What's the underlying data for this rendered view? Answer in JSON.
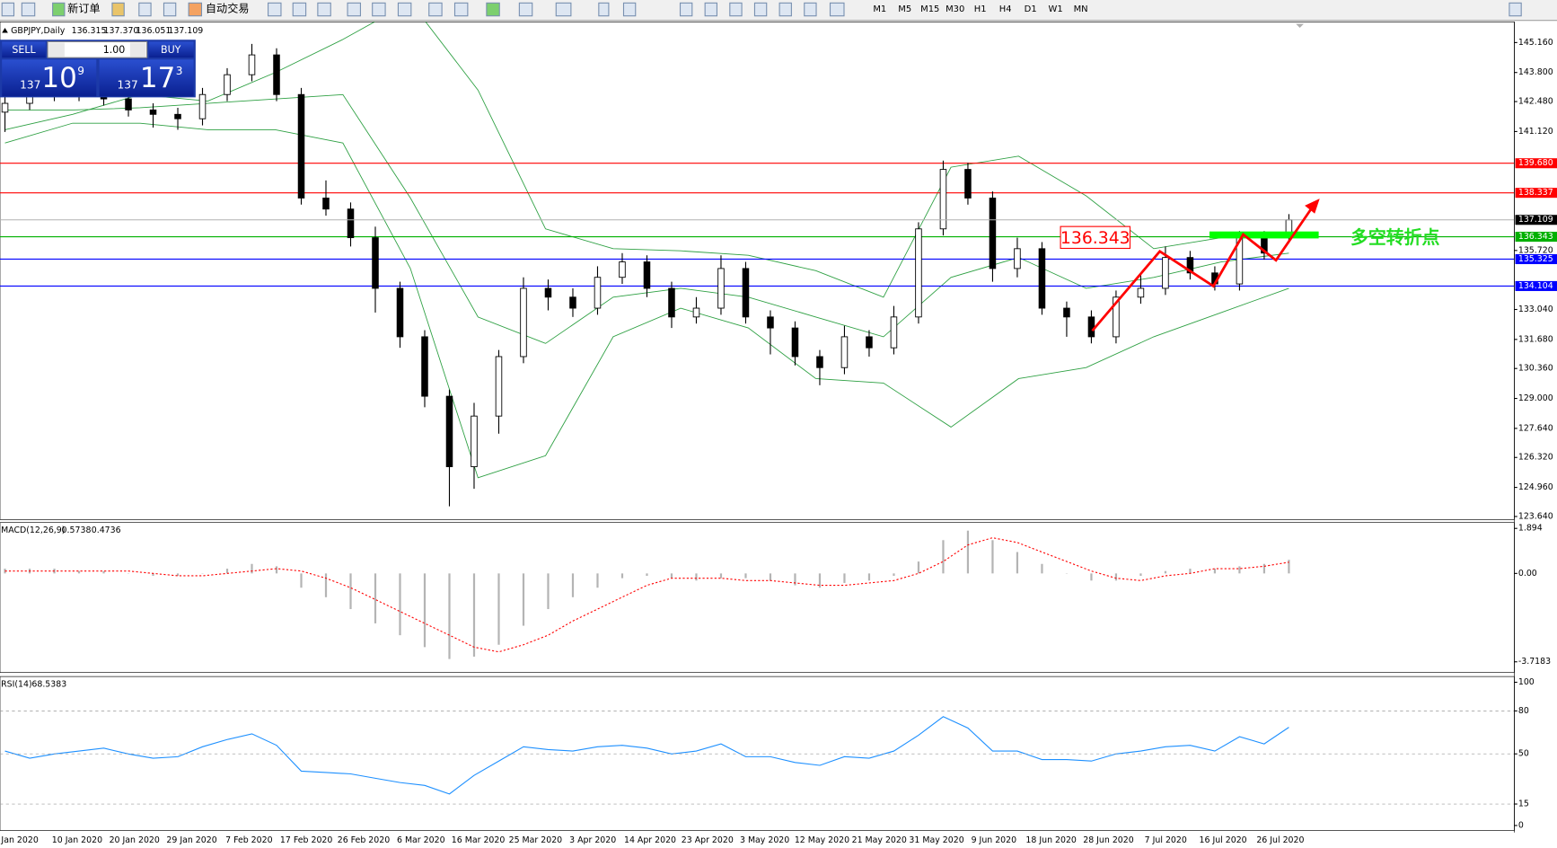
{
  "toolbar": {
    "new_order": "新订单",
    "auto_trading": "自动交易",
    "timeframes": [
      "M1",
      "M5",
      "M15",
      "M30",
      "H1",
      "H4",
      "D1",
      "W1",
      "MN"
    ]
  },
  "trade_panel": {
    "sell": "SELL",
    "buy": "BUY",
    "lots": "1.00",
    "sell_big": "137",
    "sell_pips": "10",
    "sell_point": "9",
    "buy_big": "137",
    "buy_pips": "17",
    "buy_point": "3"
  },
  "chart_data": [
    {
      "type": "candlestick",
      "title": "GBPJPY,Daily",
      "last_bar_labels": [
        "136.315",
        "137.370",
        "136.051",
        "137.109"
      ],
      "open": [
        142.0,
        142.4,
        142.8,
        143.0,
        142.8,
        142.6,
        142.1,
        141.9,
        141.7,
        142.8,
        143.7,
        144.6,
        142.8,
        138.1,
        137.6,
        136.3,
        134.0,
        131.8,
        129.1,
        125.9,
        128.2,
        130.9,
        134.0,
        133.6,
        133.1,
        134.5,
        135.2,
        134.0,
        132.7,
        133.1,
        134.9,
        132.7,
        132.2,
        130.9,
        130.4,
        131.8,
        131.3,
        132.7,
        136.7,
        139.4,
        138.1,
        134.9,
        135.8,
        133.1,
        132.7,
        131.8,
        133.6,
        134.0,
        135.4,
        134.7,
        134.2,
        136.3,
        136.315
      ],
      "high": [
        142.7,
        143.1,
        143.3,
        143.3,
        143.1,
        142.9,
        142.4,
        142.2,
        143.1,
        144.0,
        145.1,
        144.9,
        143.1,
        138.9,
        137.9,
        136.8,
        134.3,
        132.1,
        129.4,
        128.8,
        131.2,
        134.5,
        134.4,
        134.0,
        135.0,
        135.6,
        135.5,
        134.3,
        133.6,
        135.5,
        135.2,
        133.0,
        132.5,
        131.2,
        132.3,
        132.1,
        133.2,
        137.0,
        139.8,
        139.7,
        138.4,
        136.3,
        136.1,
        133.4,
        133.0,
        133.9,
        134.6,
        135.9,
        135.7,
        135.0,
        136.6,
        136.6,
        137.37
      ],
      "low": [
        141.1,
        142.1,
        142.5,
        142.5,
        142.3,
        141.8,
        141.3,
        141.2,
        141.4,
        142.5,
        143.4,
        142.5,
        137.8,
        137.3,
        135.9,
        132.9,
        131.3,
        128.6,
        124.1,
        124.9,
        127.4,
        130.6,
        133.0,
        132.7,
        132.8,
        134.2,
        133.6,
        132.2,
        132.4,
        132.8,
        132.4,
        131.0,
        130.5,
        129.6,
        130.1,
        130.9,
        131.0,
        132.4,
        136.4,
        137.8,
        134.3,
        134.5,
        132.8,
        131.8,
        131.5,
        131.5,
        133.3,
        133.7,
        134.4,
        133.9,
        133.9,
        135.3,
        136.051
      ],
      "close": [
        142.4,
        142.8,
        143.0,
        142.8,
        142.6,
        142.1,
        141.9,
        141.7,
        142.8,
        143.7,
        144.6,
        142.8,
        138.1,
        137.6,
        136.3,
        134.0,
        131.8,
        129.1,
        125.9,
        128.2,
        130.9,
        134.0,
        133.6,
        133.1,
        134.5,
        135.2,
        134.0,
        132.7,
        133.1,
        134.9,
        132.7,
        132.2,
        130.9,
        130.4,
        131.8,
        131.3,
        132.7,
        136.7,
        139.4,
        138.1,
        134.9,
        135.8,
        133.1,
        132.7,
        131.8,
        133.6,
        134.0,
        135.4,
        134.7,
        134.2,
        136.3,
        135.6,
        137.109
      ],
      "bands": {
        "color": "#2ea043",
        "upper": [
          141.2,
          141.9,
          142.8,
          142.5,
          143.8,
          145.3,
          147.0,
          143.0,
          136.7,
          135.8,
          135.7,
          135.5,
          134.8,
          133.6,
          139.5,
          140.0,
          138.2,
          135.8,
          136.3,
          136.5
        ],
        "middle": [
          142.1,
          142.1,
          142.2,
          142.4,
          142.6,
          142.8,
          138.1,
          132.7,
          131.5,
          133.6,
          134.0,
          133.6,
          132.7,
          131.8,
          134.5,
          135.4,
          134.0,
          134.5,
          135.2,
          135.6
        ],
        "lower": [
          140.6,
          141.5,
          141.5,
          141.2,
          141.2,
          140.6,
          134.9,
          125.4,
          126.4,
          131.8,
          133.1,
          132.2,
          129.9,
          129.7,
          127.7,
          129.9,
          130.4,
          131.8,
          132.9,
          134.0
        ]
      },
      "hlines": [
        {
          "value": 139.68,
          "label": "139.680",
          "color": "#ff0000"
        },
        {
          "value": 138.337,
          "color": "#ff0000"
        },
        {
          "value": 136.343,
          "color": "#00b000"
        },
        {
          "value": 135.325,
          "color": "#0000ff"
        },
        {
          "value": 134.104,
          "color": "#0000ff"
        }
      ],
      "annotation": "多空转折点",
      "ylim": [
        123.5,
        146.1
      ],
      "yticks": [
        {
          "value": 145.16,
          "label": "145.160"
        },
        {
          "value": 143.8,
          "label": "143.800"
        },
        {
          "value": 142.48,
          "label": "142.480"
        },
        {
          "value": 141.12,
          "label": "141.120"
        },
        {
          "value": 135.72,
          "label": "135.720"
        },
        {
          "value": 133.04,
          "label": "133.040"
        },
        {
          "value": 131.68,
          "label": "131.680"
        },
        {
          "value": 130.36,
          "label": "130.360"
        },
        {
          "value": 129,
          "label": "129.000"
        },
        {
          "value": 127.64,
          "label": "127.640"
        },
        {
          "value": 126.32,
          "label": "126.320"
        },
        {
          "value": 124.96,
          "label": "124.960"
        },
        {
          "value": 123.64,
          "label": "123.640"
        }
      ],
      "date_labels": [
        "Jan 2020",
        "10 Jan 2020",
        "20 Jan 2020",
        "29 Jan 2020",
        "7 Feb 2020",
        "17 Feb 2020",
        "26 Feb 2020",
        "6 Mar 2020",
        "16 Mar 2020",
        "25 Mar 2020",
        "3 Apr 2020",
        "14 Apr 2020",
        "23 Apr 2020",
        "3 May 2020",
        "12 May 2020",
        "21 May 2020",
        "31 May 2020",
        "9 Jun 2020",
        "18 Jun 2020",
        "28 Jun 2020",
        "7 Jul 2020",
        "16 Jul 2020",
        "26 Jul 2020"
      ]
    },
    {
      "type": "macd",
      "title": "MACD(12,26,9)",
      "histogram_color": "#b4b4b4",
      "signal_color": "#ff0000",
      "histogram": [
        0.2,
        0.2,
        0.2,
        0.1,
        0.1,
        0.0,
        -0.1,
        -0.1,
        0.0,
        0.2,
        0.4,
        0.3,
        -0.6,
        -1.0,
        -1.5,
        -2.1,
        -2.6,
        -3.1,
        -3.6,
        -3.5,
        -3.0,
        -2.2,
        -1.5,
        -1.0,
        -0.6,
        -0.2,
        -0.1,
        -0.2,
        -0.3,
        -0.2,
        -0.2,
        -0.3,
        -0.5,
        -0.6,
        -0.4,
        -0.3,
        -0.1,
        0.5,
        1.4,
        1.8,
        1.4,
        0.9,
        0.4,
        0.0,
        -0.3,
        -0.3,
        -0.1,
        0.1,
        0.2,
        0.2,
        0.3,
        0.4,
        0.5738
      ],
      "signal": [
        0.1,
        0.1,
        0.1,
        0.1,
        0.1,
        0.1,
        0.0,
        -0.1,
        -0.1,
        0.0,
        0.1,
        0.2,
        0.1,
        -0.2,
        -0.6,
        -1.1,
        -1.6,
        -2.1,
        -2.6,
        -3.1,
        -3.3,
        -3.0,
        -2.6,
        -2.0,
        -1.5,
        -1.0,
        -0.5,
        -0.2,
        -0.2,
        -0.2,
        -0.3,
        -0.3,
        -0.4,
        -0.5,
        -0.5,
        -0.4,
        -0.3,
        0.0,
        0.5,
        1.2,
        1.5,
        1.3,
        0.9,
        0.5,
        0.1,
        -0.2,
        -0.3,
        -0.1,
        0.0,
        0.2,
        0.2,
        0.3,
        0.4736
      ],
      "ylim": [
        -4.17,
        2.14
      ],
      "yticks": [
        1.894,
        {
          "value": 0,
          "label": "0.00"
        },
        -3.7183
      ]
    },
    {
      "type": "line",
      "title": "RSI(14)",
      "color": "#1e90ff",
      "values": [
        52,
        47,
        50,
        52,
        54,
        50,
        47,
        48,
        55,
        60,
        64,
        56,
        38,
        37,
        36,
        33,
        30,
        28,
        22,
        35,
        45,
        55,
        53,
        52,
        55,
        56,
        54,
        50,
        52,
        57,
        48,
        48,
        44,
        42,
        48,
        47,
        52,
        63,
        76,
        68,
        52,
        52,
        46,
        46,
        45,
        50,
        52,
        55,
        56,
        52,
        62,
        57,
        68.5383
      ],
      "ylim": [
        -3.5,
        104
      ],
      "yticks": [
        100,
        80,
        50,
        15,
        0
      ]
    }
  ]
}
